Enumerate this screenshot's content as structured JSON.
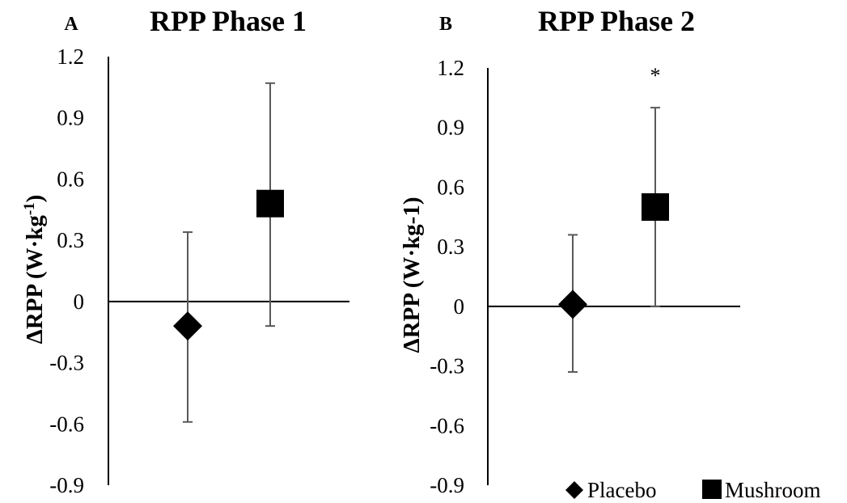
{
  "chart_data": [
    {
      "type": "scatter",
      "panel_label": "A",
      "title": "RPP Phase 1",
      "xlabel": "",
      "ylabel": "ΔRPP (W·kg-1)",
      "ylabel_main": "ΔRPP (W·kg",
      "ylabel_sup": "-1",
      "ylabel_close": ")",
      "ylim": [
        -0.9,
        1.2
      ],
      "y_ticks": [
        "1.2",
        "0.9",
        "0.6",
        "0.3",
        "0",
        "-0.3",
        "-0.6",
        "-0.9"
      ],
      "grid": false,
      "series": [
        {
          "name": "Placebo",
          "marker": "diamond",
          "x": 1,
          "y": -0.12,
          "error_low": -0.59,
          "error_high": 0.34
        },
        {
          "name": "Mushroom",
          "marker": "square",
          "x": 2,
          "y": 0.48,
          "error_low": -0.12,
          "error_high": 1.07
        }
      ],
      "annotations": []
    },
    {
      "type": "scatter",
      "panel_label": "B",
      "title": "RPP Phase 2",
      "xlabel": "",
      "ylabel": "ΔRPP (W·kg-1)",
      "ylim": [
        -0.9,
        1.2
      ],
      "y_ticks": [
        "1.2",
        "0.9",
        "0.6",
        "0.3",
        "0",
        "-0.3",
        "-0.6",
        "-0.9"
      ],
      "grid": false,
      "series": [
        {
          "name": "Placebo",
          "marker": "diamond",
          "x": 1,
          "y": 0.01,
          "error_low": -0.33,
          "error_high": 0.36
        },
        {
          "name": "Mushroom",
          "marker": "square",
          "x": 2,
          "y": 0.5,
          "error_low": 0.0,
          "error_high": 1.0
        }
      ],
      "annotations": [
        {
          "text": "*",
          "series": "Mushroom"
        }
      ]
    }
  ],
  "legend": {
    "placement": "bottom-right",
    "items": [
      {
        "label": "Placebo",
        "marker": "diamond",
        "symbol": "◆"
      },
      {
        "label": "Mushroom",
        "marker": "square",
        "symbol": "■"
      }
    ]
  },
  "colors": {
    "marker": "#000000",
    "axis": "#000000",
    "errorbar": "#595959"
  }
}
